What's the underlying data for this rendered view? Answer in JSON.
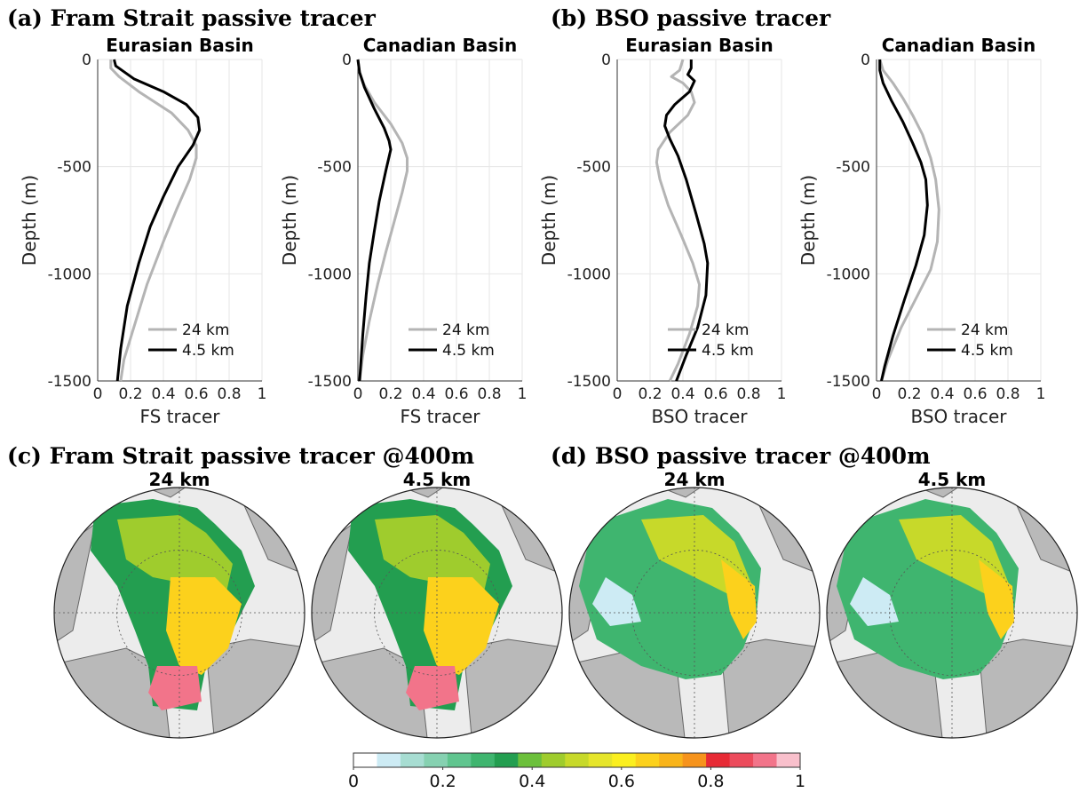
{
  "titles": {
    "a": "(a) Fram Strait passive tracer",
    "b": "(b) BSO passive tracer",
    "c": "(c) Fram Strait passive tracer @400m",
    "d": "(d) BSO passive tracer @400m"
  },
  "chart_data": [
    {
      "type": "line",
      "title": "Eurasian Basin",
      "xlabel": "FS tracer",
      "ylabel": "Depth (m)",
      "xlim": [
        0,
        1
      ],
      "ylim": [
        -1500,
        0
      ],
      "xticks": [
        "0",
        "0.2",
        "0.4",
        "0.6",
        "0.8",
        "1"
      ],
      "yticks": [
        "0",
        "-500",
        "-1000",
        "-1500"
      ],
      "grid": true,
      "legend": "bottom-right",
      "series": [
        {
          "name": "24 km",
          "color": "#b4b4b4",
          "points": [
            [
              0.08,
              0
            ],
            [
              0.08,
              -40
            ],
            [
              0.13,
              -80
            ],
            [
              0.25,
              -150
            ],
            [
              0.45,
              -250
            ],
            [
              0.55,
              -330
            ],
            [
              0.6,
              -400
            ],
            [
              0.6,
              -460
            ],
            [
              0.56,
              -560
            ],
            [
              0.48,
              -700
            ],
            [
              0.4,
              -850
            ],
            [
              0.3,
              -1050
            ],
            [
              0.22,
              -1250
            ],
            [
              0.16,
              -1400
            ],
            [
              0.14,
              -1500
            ]
          ]
        },
        {
          "name": "4.5 km",
          "color": "#000000",
          "points": [
            [
              0.1,
              0
            ],
            [
              0.11,
              -30
            ],
            [
              0.22,
              -90
            ],
            [
              0.4,
              -150
            ],
            [
              0.54,
              -210
            ],
            [
              0.61,
              -270
            ],
            [
              0.62,
              -330
            ],
            [
              0.58,
              -400
            ],
            [
              0.49,
              -500
            ],
            [
              0.4,
              -640
            ],
            [
              0.32,
              -780
            ],
            [
              0.25,
              -950
            ],
            [
              0.18,
              -1150
            ],
            [
              0.14,
              -1350
            ],
            [
              0.12,
              -1500
            ]
          ]
        }
      ]
    },
    {
      "type": "line",
      "title": "Canadian Basin",
      "xlabel": "FS tracer",
      "ylabel": "Depth (m)",
      "xlim": [
        0,
        1
      ],
      "ylim": [
        -1500,
        0
      ],
      "xticks": [
        "0",
        "0.2",
        "0.4",
        "0.6",
        "0.8",
        "1"
      ],
      "yticks": [
        "0",
        "-500",
        "-1000",
        "-1500"
      ],
      "grid": true,
      "legend": "bottom-right",
      "series": [
        {
          "name": "24 km",
          "color": "#b4b4b4",
          "points": [
            [
              0.0,
              0
            ],
            [
              0.01,
              -60
            ],
            [
              0.04,
              -120
            ],
            [
              0.1,
              -200
            ],
            [
              0.2,
              -300
            ],
            [
              0.27,
              -390
            ],
            [
              0.3,
              -460
            ],
            [
              0.3,
              -520
            ],
            [
              0.27,
              -620
            ],
            [
              0.22,
              -760
            ],
            [
              0.17,
              -900
            ],
            [
              0.12,
              -1050
            ],
            [
              0.07,
              -1220
            ],
            [
              0.03,
              -1380
            ],
            [
              0.01,
              -1500
            ]
          ]
        },
        {
          "name": "4.5 km",
          "color": "#000000",
          "points": [
            [
              0.0,
              0
            ],
            [
              0.01,
              -60
            ],
            [
              0.04,
              -130
            ],
            [
              0.1,
              -230
            ],
            [
              0.16,
              -320
            ],
            [
              0.19,
              -380
            ],
            [
              0.2,
              -420
            ],
            [
              0.17,
              -520
            ],
            [
              0.13,
              -660
            ],
            [
              0.1,
              -800
            ],
            [
              0.07,
              -950
            ],
            [
              0.05,
              -1100
            ],
            [
              0.03,
              -1280
            ],
            [
              0.01,
              -1500
            ]
          ]
        }
      ]
    },
    {
      "type": "line",
      "title": "Eurasian Basin",
      "xlabel": "BSO tracer",
      "ylabel": "Depth (m)",
      "xlim": [
        0,
        1
      ],
      "ylim": [
        -1500,
        0
      ],
      "xticks": [
        "0",
        "0.2",
        "0.4",
        "0.6",
        "0.8",
        "1"
      ],
      "yticks": [
        "0",
        "-500",
        "-1000",
        "-1500"
      ],
      "grid": true,
      "legend": "bottom-right",
      "series": [
        {
          "name": "24 km",
          "color": "#b4b4b4",
          "points": [
            [
              0.4,
              0
            ],
            [
              0.38,
              -50
            ],
            [
              0.33,
              -80
            ],
            [
              0.4,
              -110
            ],
            [
              0.45,
              -150
            ],
            [
              0.47,
              -200
            ],
            [
              0.43,
              -260
            ],
            [
              0.32,
              -340
            ],
            [
              0.25,
              -420
            ],
            [
              0.24,
              -480
            ],
            [
              0.26,
              -560
            ],
            [
              0.31,
              -680
            ],
            [
              0.39,
              -820
            ],
            [
              0.46,
              -950
            ],
            [
              0.5,
              -1050
            ],
            [
              0.49,
              -1150
            ],
            [
              0.44,
              -1280
            ],
            [
              0.37,
              -1420
            ],
            [
              0.32,
              -1500
            ]
          ]
        },
        {
          "name": "4.5 km",
          "color": "#000000",
          "points": [
            [
              0.45,
              0
            ],
            [
              0.45,
              -40
            ],
            [
              0.43,
              -70
            ],
            [
              0.47,
              -100
            ],
            [
              0.44,
              -150
            ],
            [
              0.35,
              -210
            ],
            [
              0.3,
              -260
            ],
            [
              0.29,
              -310
            ],
            [
              0.32,
              -370
            ],
            [
              0.37,
              -450
            ],
            [
              0.42,
              -560
            ],
            [
              0.48,
              -720
            ],
            [
              0.53,
              -860
            ],
            [
              0.55,
              -950
            ],
            [
              0.54,
              -1100
            ],
            [
              0.49,
              -1250
            ],
            [
              0.42,
              -1380
            ],
            [
              0.36,
              -1500
            ]
          ]
        }
      ]
    },
    {
      "type": "line",
      "title": "Canadian Basin",
      "xlabel": "BSO tracer",
      "ylabel": "Depth (m)",
      "xlim": [
        0,
        1
      ],
      "ylim": [
        -1500,
        0
      ],
      "xticks": [
        "0",
        "0.2",
        "0.4",
        "0.6",
        "0.8",
        "1"
      ],
      "yticks": [
        "0",
        "-500",
        "-1000",
        "-1500"
      ],
      "grid": true,
      "legend": "bottom-right",
      "series": [
        {
          "name": "24 km",
          "color": "#b4b4b4",
          "points": [
            [
              0.02,
              0
            ],
            [
              0.04,
              -50
            ],
            [
              0.1,
              -110
            ],
            [
              0.16,
              -180
            ],
            [
              0.22,
              -260
            ],
            [
              0.28,
              -350
            ],
            [
              0.33,
              -460
            ],
            [
              0.36,
              -560
            ],
            [
              0.38,
              -700
            ],
            [
              0.37,
              -850
            ],
            [
              0.33,
              -980
            ],
            [
              0.25,
              -1100
            ],
            [
              0.15,
              -1250
            ],
            [
              0.07,
              -1400
            ],
            [
              0.03,
              -1500
            ]
          ]
        },
        {
          "name": "4.5 km",
          "color": "#000000",
          "points": [
            [
              0.02,
              0
            ],
            [
              0.02,
              -50
            ],
            [
              0.04,
              -110
            ],
            [
              0.09,
              -190
            ],
            [
              0.16,
              -290
            ],
            [
              0.22,
              -390
            ],
            [
              0.27,
              -480
            ],
            [
              0.3,
              -560
            ],
            [
              0.31,
              -680
            ],
            [
              0.29,
              -820
            ],
            [
              0.24,
              -960
            ],
            [
              0.17,
              -1120
            ],
            [
              0.1,
              -1290
            ],
            [
              0.05,
              -1430
            ],
            [
              0.03,
              -1500
            ]
          ]
        }
      ]
    }
  ],
  "maps": [
    {
      "title": "24 km"
    },
    {
      "title": "4.5 km"
    },
    {
      "title": "24 km"
    },
    {
      "title": "4.5 km"
    }
  ],
  "colorbar": {
    "ticks": [
      "0",
      "0.2",
      "0.4",
      "0.6",
      "0.8",
      "1"
    ],
    "colors": [
      "#ffffff",
      "#cdebf4",
      "#a7ddd2",
      "#86d1b1",
      "#60c58f",
      "#3fb56f",
      "#239e50",
      "#6cc03b",
      "#9fcc2d",
      "#c7d92a",
      "#e6e52b",
      "#fbef1f",
      "#fcd11c",
      "#f9b41a",
      "#f6931c",
      "#e72a35",
      "#ec4b5c",
      "#f2748a",
      "#f9c0cc"
    ]
  }
}
